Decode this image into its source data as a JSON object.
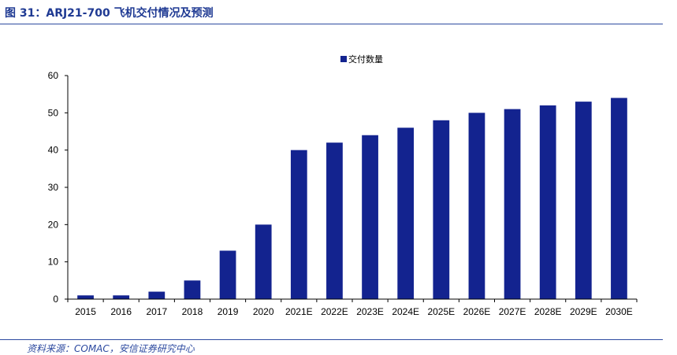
{
  "figure": {
    "title": "图 31：ARJ21-700 飞机交付情况及预测",
    "source": "资料来源：COMAC，安信证券研究中心"
  },
  "colors": {
    "bar": "#13238f",
    "rule": "#2d4aa0",
    "title": "#1f3a93"
  },
  "chart_data": {
    "type": "bar",
    "title": "",
    "xlabel": "",
    "ylabel": "",
    "ylim": [
      0,
      60
    ],
    "yticks": [
      0,
      10,
      20,
      30,
      40,
      50,
      60
    ],
    "grid": false,
    "legend_position": "top-center",
    "categories": [
      "2015",
      "2016",
      "2017",
      "2018",
      "2019",
      "2020",
      "2021E",
      "2022E",
      "2023E",
      "2024E",
      "2025E",
      "2026E",
      "2027E",
      "2028E",
      "2029E",
      "2030E"
    ],
    "series": [
      {
        "name": "交付数量",
        "values": [
          1,
          1,
          2,
          5,
          13,
          20,
          40,
          42,
          44,
          46,
          48,
          50,
          51,
          52,
          53,
          54
        ]
      }
    ]
  }
}
